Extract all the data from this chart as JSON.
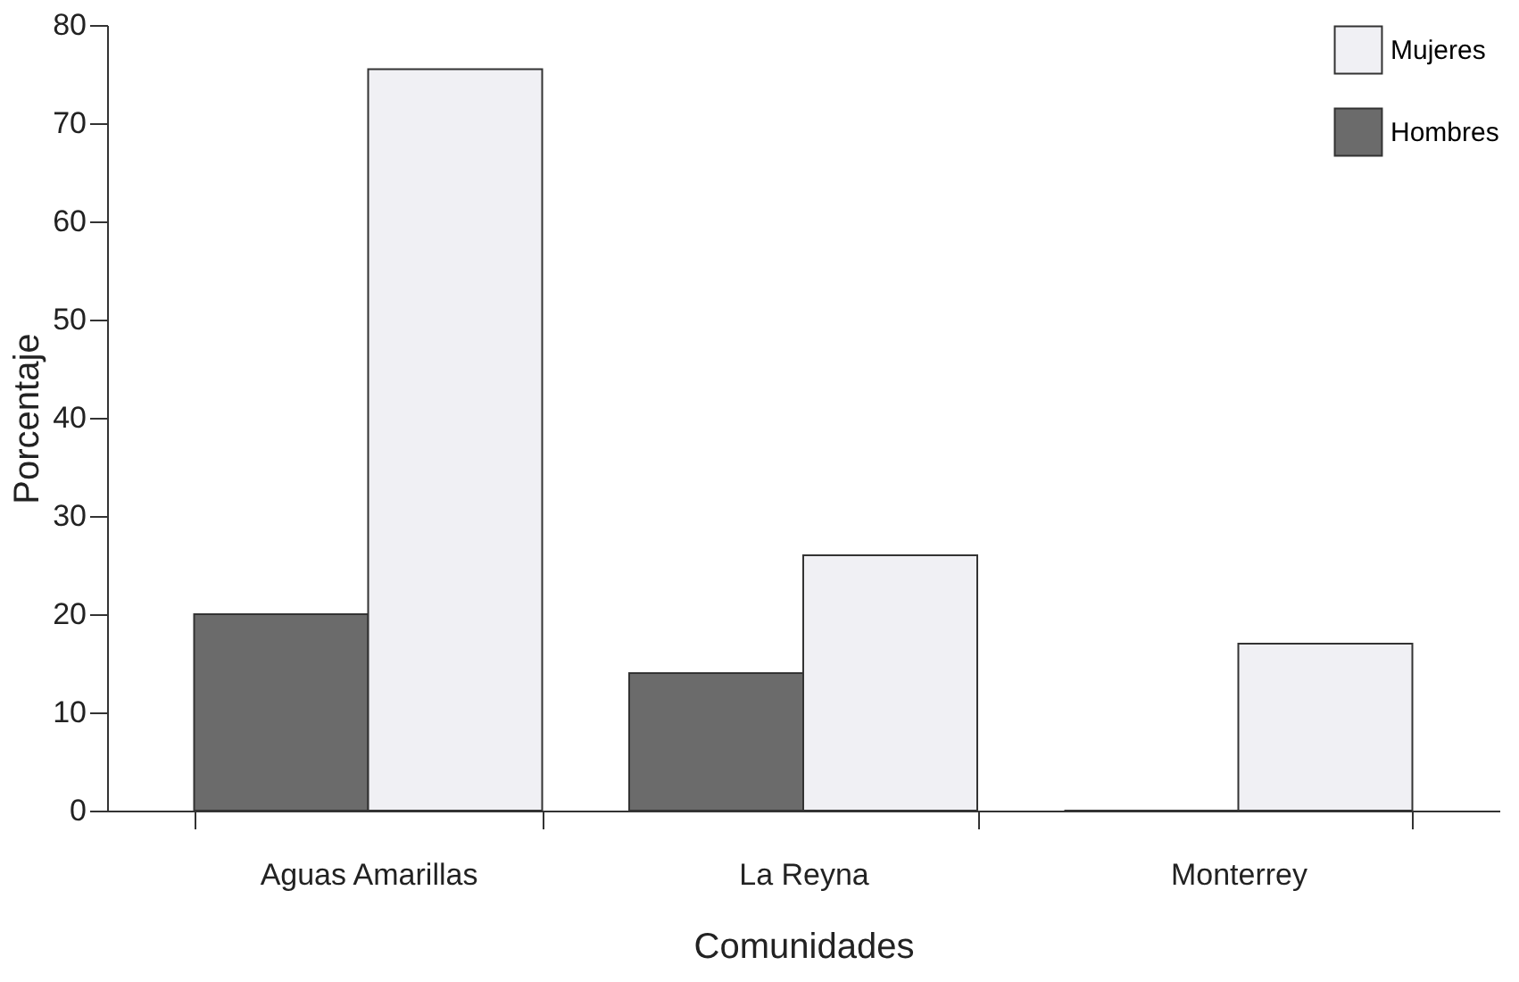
{
  "chart_data": {
    "type": "bar",
    "xlabel": "Comunidades",
    "ylabel": "Porcentaje",
    "categories": [
      "Aguas Amarillas",
      "La Reyna",
      "Monterrey"
    ],
    "series": [
      {
        "name": "Hombres",
        "color": "#6b6b6b",
        "values": [
          20,
          14,
          0
        ]
      },
      {
        "name": "Mujeres",
        "color": "#f0f0f4",
        "values": [
          75.5,
          26,
          17
        ]
      }
    ],
    "ylim": [
      0,
      80
    ],
    "yticks": [
      0,
      10,
      20,
      30,
      40,
      50,
      60,
      70,
      80
    ],
    "grid": false,
    "legend": "top right"
  }
}
